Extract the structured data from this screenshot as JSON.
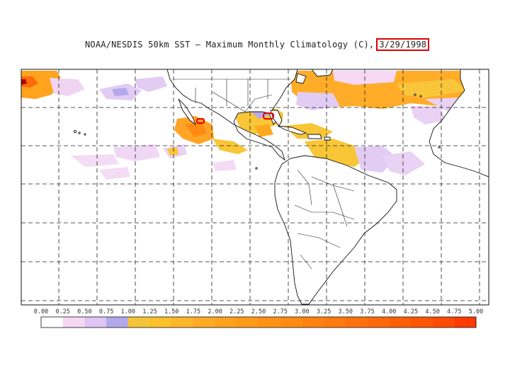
{
  "title": {
    "main": "NOAA/NESDIS 50km SST – Maximum Monthly Climatology (C),",
    "date": "3/29/1998"
  },
  "colorbar": {
    "ticks": [
      "0.00",
      "0.25",
      "0.50",
      "0.75",
      "1.00",
      "1.25",
      "1.50",
      "1.75",
      "2.00",
      "2.25",
      "2.50",
      "2.75",
      "3.00",
      "3.25",
      "3.50",
      "3.75",
      "4.00",
      "4.25",
      "4.50",
      "4.75",
      "5.00"
    ],
    "colors": [
      "#ffffff",
      "#f4d8f4",
      "#e0c6f4",
      "#b4a8ec",
      "#f5c43a",
      "#fbc02a",
      "#ffb62a",
      "#ffaa24",
      "#ffa11c",
      "#ff9a18",
      "#ff9214",
      "#ff8a12",
      "#ff8210",
      "#ff7a0e",
      "#ff710c",
      "#ff680a",
      "#ff5e08",
      "#ff5406",
      "#ff4a04",
      "#ff3a02"
    ]
  },
  "map": {
    "land_color": "#ffffff",
    "grid_style": "dashed",
    "outline_color": "#111111",
    "highlight_color": "#e00000"
  }
}
